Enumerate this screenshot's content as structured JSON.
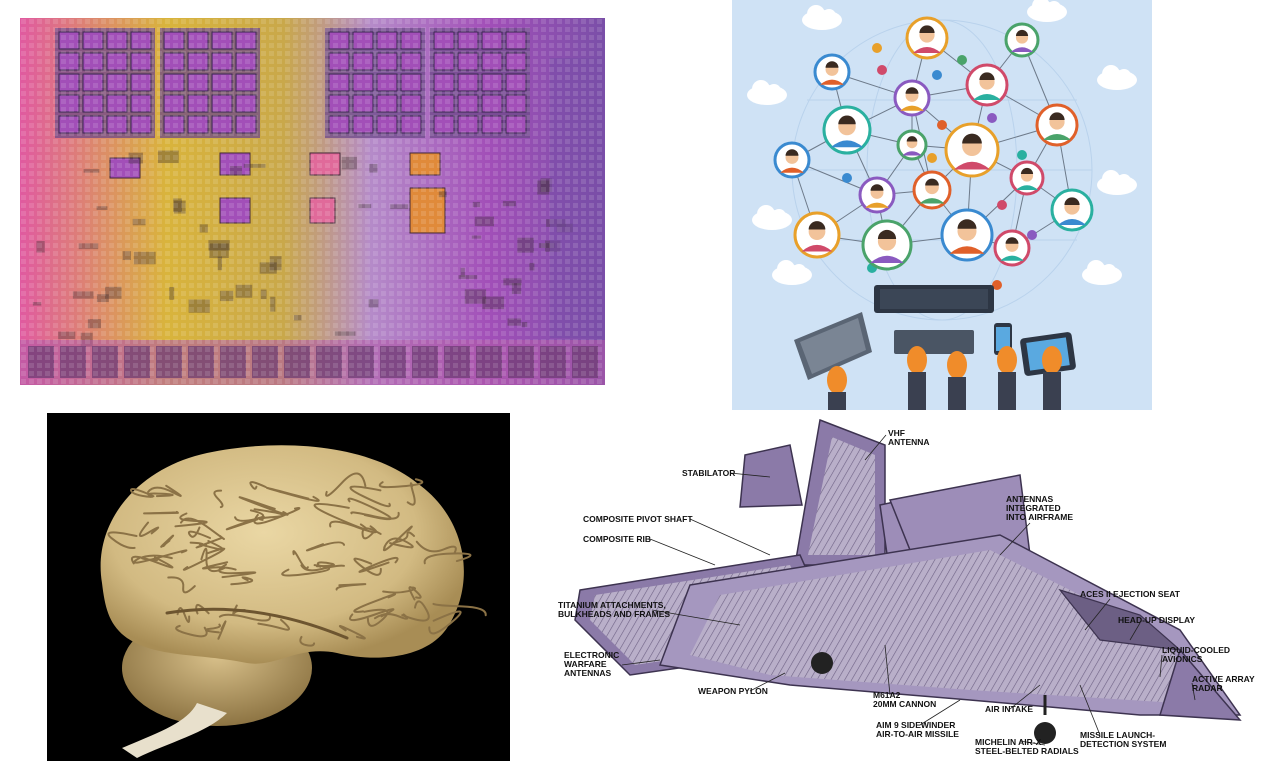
{
  "panels": {
    "chip": {
      "subject": "microprocessor die photo"
    },
    "network": {
      "subject": "people network with devices illustration"
    },
    "brain": {
      "subject": "human brain photograph"
    },
    "jet": {
      "subject": "fighter jet cutaway diagram"
    }
  },
  "jet_labels": {
    "vhf_antenna": [
      "VHF",
      "ANTENNA"
    ],
    "stabilator": [
      "STABILATOR"
    ],
    "antennas_airframe": [
      "ANTENNAS",
      "INTEGRATED",
      "INTO AIRFRAME"
    ],
    "composite_pivot_shaft": [
      "COMPOSITE PIVOT SHAFT"
    ],
    "composite_rib": [
      "COMPOSITE RIB"
    ],
    "titanium": [
      "TITANIUM ATTACHMENTS,",
      "BULKHEADS AND FRAMES"
    ],
    "aces_seat": [
      "ACES II EJECTION SEAT"
    ],
    "hud": [
      "HEAD-UP DISPLAY"
    ],
    "liquid_cooled": [
      "LIQUID-COOLED",
      "AVIONICS"
    ],
    "active_radar": [
      "ACTIVE ARRAY",
      "RADAR"
    ],
    "ew_antennas": [
      "ELECTRONIC",
      "WARFARE",
      "ANTENNAS"
    ],
    "weapon_pylon": [
      "WEAPON PYLON"
    ],
    "cannon": [
      "M61A2",
      "20MM CANNON"
    ],
    "air_intake": [
      "AIR INTAKE"
    ],
    "aim9": [
      "AIM 9 SIDEWINDER",
      "AIR-TO-AIR MISSILE"
    ],
    "missile_launch": [
      "MISSILE LAUNCH-",
      "DETECTION SYSTEM"
    ],
    "michelin": [
      "MICHELIN AIR-X",
      "STEEL-BELTED RADIALS"
    ]
  },
  "colors": {
    "chip_purple": "#a24fb8",
    "chip_yellow": "#d9b43c",
    "chip_orange": "#e08a3a",
    "chip_pink": "#e06a9a",
    "network_bg": "#cfe2f5",
    "brain_tan": "#d9c38c",
    "jet_purple": "#8b7aa8"
  }
}
